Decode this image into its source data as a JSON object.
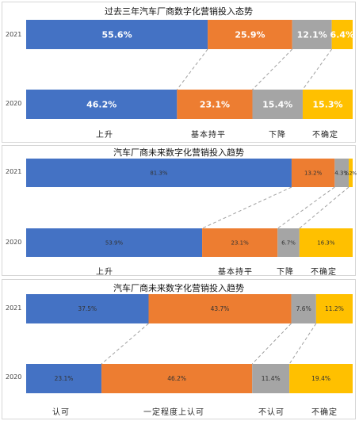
{
  "charts": [
    {
      "title": "过去三年汽车厂商数字化营销投入态势",
      "categories": [
        "上升",
        "基本持平",
        "下降",
        "不确定"
      ],
      "rows": [
        {
          "year": "2021",
          "values": [
            55.6,
            25.9,
            12.1,
            6.4
          ],
          "labels": [
            "55.6%",
            "25.9%",
            "12.1%",
            "6.4%"
          ]
        },
        {
          "year": "2020",
          "values": [
            46.2,
            23.1,
            15.4,
            15.3
          ],
          "labels": [
            "46.2%",
            "23.1%",
            "15.4%",
            "15.3%"
          ]
        }
      ]
    },
    {
      "title": "汽车厂商未来数字化营销投入趋势",
      "categories": [
        "上升",
        "基本持平",
        "下降",
        "不确定"
      ],
      "rows": [
        {
          "year": "2021",
          "values": [
            81.3,
            13.2,
            4.3,
            1.2
          ],
          "labels": [
            "81.3%",
            "13.2%",
            "4.3%",
            "1.2%"
          ]
        },
        {
          "year": "2020",
          "values": [
            53.9,
            23.1,
            6.7,
            16.3
          ],
          "labels": [
            "53.9%",
            "23.1%",
            "6.7%",
            "16.3%"
          ]
        }
      ]
    },
    {
      "title": "汽车厂商未来数字化营销投入趋势",
      "categories": [
        "认可",
        "一定程度上认可",
        "不认可",
        "不确定"
      ],
      "rows": [
        {
          "year": "2021",
          "values": [
            37.5,
            43.7,
            7.6,
            11.2
          ],
          "labels": [
            "37.5%",
            "43.7%",
            "7.6%",
            "11.2%"
          ]
        },
        {
          "year": "2020",
          "values": [
            23.1,
            46.2,
            11.4,
            19.4
          ],
          "labels": [
            "23.1%",
            "46.2%",
            "11.4%",
            "19.4%"
          ]
        }
      ]
    }
  ],
  "chart_data": [
    {
      "type": "bar",
      "stacked": true,
      "orientation": "horizontal",
      "title": "过去三年汽车厂商数字化营销投入态势",
      "categories": [
        "2021",
        "2020"
      ],
      "series": [
        {
          "name": "上升",
          "values": [
            55.6,
            46.2
          ]
        },
        {
          "name": "基本持平",
          "values": [
            25.9,
            23.1
          ]
        },
        {
          "name": "下降",
          "values": [
            12.1,
            15.4
          ]
        },
        {
          "name": "不确定",
          "values": [
            6.4,
            15.3
          ]
        }
      ],
      "unit": "%",
      "legend": "bottom"
    },
    {
      "type": "bar",
      "stacked": true,
      "orientation": "horizontal",
      "title": "汽车厂商未来数字化营销投入趋势",
      "categories": [
        "2021",
        "2020"
      ],
      "series": [
        {
          "name": "上升",
          "values": [
            81.3,
            53.9
          ]
        },
        {
          "name": "基本持平",
          "values": [
            13.2,
            23.1
          ]
        },
        {
          "name": "下降",
          "values": [
            4.3,
            6.7
          ]
        },
        {
          "name": "不确定",
          "values": [
            1.2,
            16.3
          ]
        }
      ],
      "unit": "%",
      "legend": "bottom"
    },
    {
      "type": "bar",
      "stacked": true,
      "orientation": "horizontal",
      "title": "汽车厂商未来数字化营销投入趋势",
      "categories": [
        "2021",
        "2020"
      ],
      "series": [
        {
          "name": "认可",
          "values": [
            37.5,
            23.1
          ]
        },
        {
          "name": "一定程度上认可",
          "values": [
            43.7,
            46.2
          ]
        },
        {
          "name": "不认可",
          "values": [
            7.6,
            11.4
          ]
        },
        {
          "name": "不确定",
          "values": [
            11.2,
            19.4
          ]
        }
      ],
      "unit": "%",
      "legend": "bottom"
    }
  ],
  "colors": [
    "#4472c4",
    "#ed7d31",
    "#a5a5a5",
    "#ffc000"
  ],
  "connector_color": "#a0a0a0"
}
